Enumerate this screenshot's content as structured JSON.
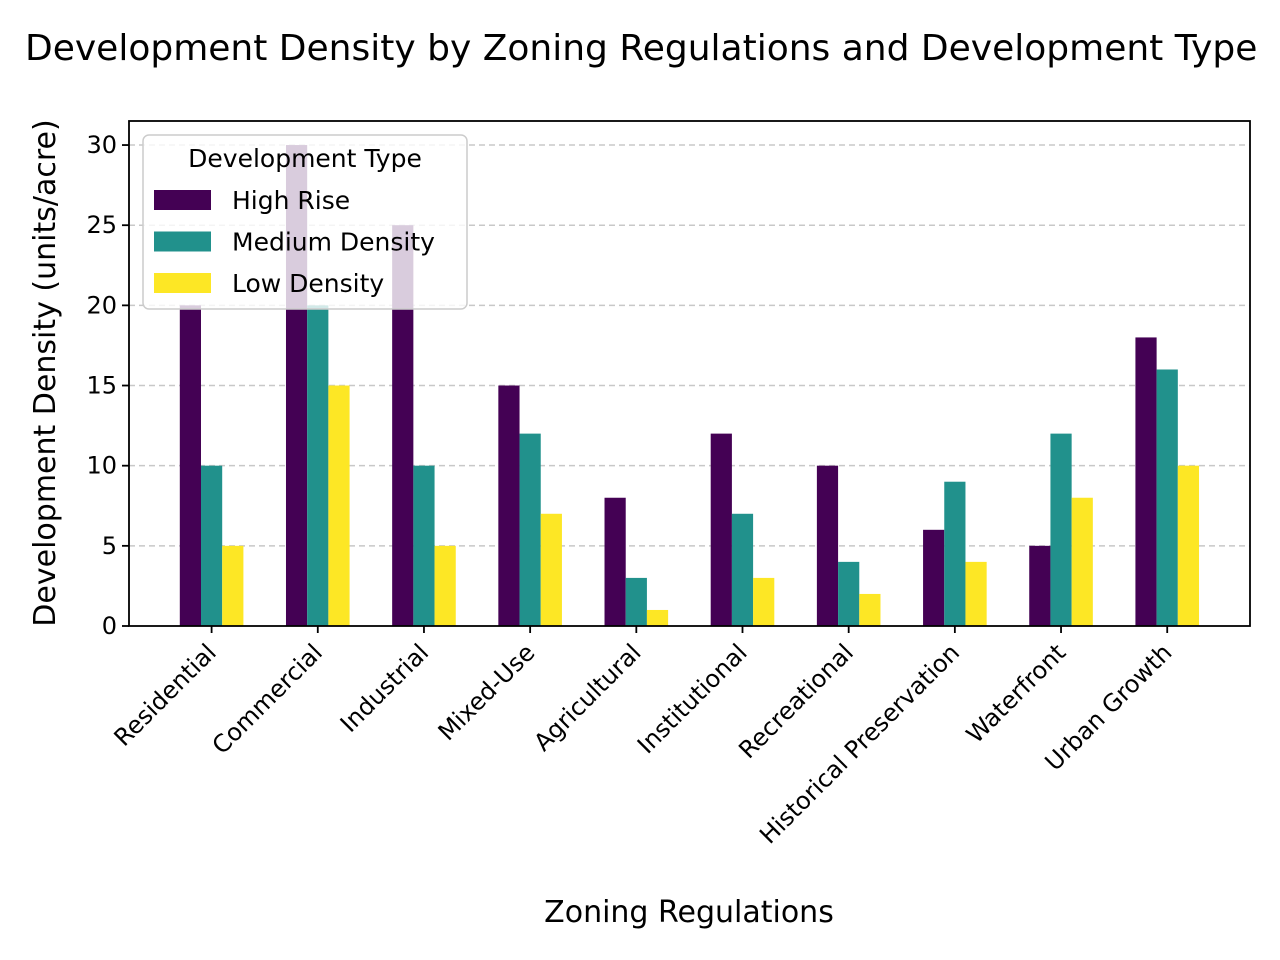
{
  "chart_data": {
    "type": "bar",
    "title": "Development Density by Zoning Regulations and Development Type",
    "xlabel": "Zoning Regulations",
    "ylabel": "Development Density (units/acre)",
    "categories": [
      "Residential",
      "Commercial",
      "Industrial",
      "Mixed-Use",
      "Agricultural",
      "Institutional",
      "Recreational",
      "Historical Preservation",
      "Waterfront",
      "Urban Growth"
    ],
    "series": [
      {
        "name": "High Rise",
        "color": "#440154",
        "values": [
          20,
          30,
          25,
          15,
          8,
          12,
          10,
          6,
          5,
          18
        ]
      },
      {
        "name": "Medium Density",
        "color": "#21918c",
        "values": [
          10,
          20,
          10,
          12,
          3,
          7,
          4,
          9,
          12,
          16
        ]
      },
      {
        "name": "Low Density",
        "color": "#fde725",
        "values": [
          5,
          15,
          5,
          7,
          1,
          3,
          2,
          4,
          8,
          10
        ]
      }
    ],
    "ylim": [
      0,
      31.5
    ],
    "yticks": [
      0,
      5,
      10,
      15,
      20,
      25,
      30
    ],
    "grid": "y-dashed",
    "legend": {
      "title": "Development Type",
      "placement": "top-left"
    }
  }
}
